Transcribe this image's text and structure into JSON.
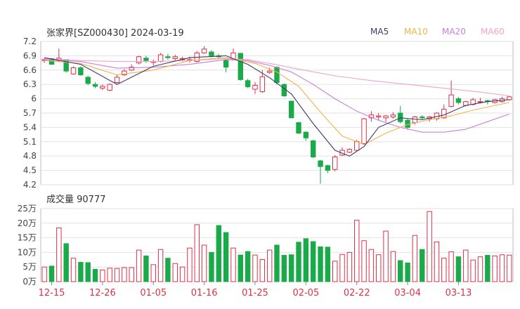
{
  "chart_data": [
    {
      "type": "candlestick",
      "title": "张家界[SZ000430] 2024-03-19",
      "legend": [
        {
          "name": "MA5",
          "color": "#3b3b6e"
        },
        {
          "name": "MA10",
          "color": "#f2b24a"
        },
        {
          "name": "MA20",
          "color": "#c77ee0"
        },
        {
          "name": "MA60",
          "color": "#f0a3c8"
        }
      ],
      "legend_placement": "top-right",
      "ylim": [
        4.2,
        7.2
      ],
      "yticks": [
        "7.2",
        "6.9",
        "6.6",
        "6.3",
        "6",
        "5.7",
        "5.4",
        "5.1",
        "4.8",
        "4.5",
        "4.2"
      ],
      "up_color": "#e0304a",
      "down_color": "#1aaa4a",
      "candles": [
        [
          6.8,
          6.85,
          6.75,
          6.82
        ],
        [
          6.84,
          6.85,
          6.72,
          6.72
        ],
        [
          6.8,
          7.05,
          6.78,
          6.85
        ],
        [
          6.82,
          6.82,
          6.55,
          6.58
        ],
        [
          6.52,
          6.68,
          6.5,
          6.65
        ],
        [
          6.65,
          6.68,
          6.48,
          6.5
        ],
        [
          6.45,
          6.48,
          6.28,
          6.32
        ],
        [
          6.3,
          6.35,
          6.22,
          6.26
        ],
        [
          6.22,
          6.3,
          6.18,
          6.26
        ],
        [
          6.18,
          6.32,
          6.16,
          6.3
        ],
        [
          6.34,
          6.5,
          6.32,
          6.45
        ],
        [
          6.5,
          6.62,
          6.48,
          6.58
        ],
        [
          6.6,
          6.72,
          6.58,
          6.66
        ],
        [
          6.75,
          6.9,
          6.72,
          6.88
        ],
        [
          6.85,
          6.9,
          6.75,
          6.8
        ],
        [
          6.76,
          6.82,
          6.7,
          6.78
        ],
        [
          6.78,
          6.96,
          6.76,
          6.92
        ],
        [
          6.88,
          6.94,
          6.82,
          6.86
        ],
        [
          6.84,
          6.92,
          6.8,
          6.88
        ],
        [
          6.82,
          6.88,
          6.78,
          6.84
        ],
        [
          6.8,
          6.88,
          6.76,
          6.82
        ],
        [
          6.78,
          7.0,
          6.76,
          6.96
        ],
        [
          6.96,
          7.1,
          6.94,
          7.04
        ],
        [
          6.98,
          7.02,
          6.86,
          6.9
        ],
        [
          6.9,
          6.94,
          6.85,
          6.88
        ],
        [
          6.8,
          6.82,
          6.55,
          6.66
        ],
        [
          6.82,
          7.05,
          6.8,
          6.96
        ],
        [
          6.95,
          6.96,
          6.38,
          6.4
        ],
        [
          6.38,
          6.42,
          6.22,
          6.25
        ],
        [
          6.2,
          6.35,
          6.1,
          6.28
        ],
        [
          6.15,
          6.6,
          6.12,
          6.46
        ],
        [
          6.55,
          6.65,
          6.52,
          6.58
        ],
        [
          6.66,
          6.68,
          6.3,
          6.34
        ],
        [
          6.3,
          6.32,
          6.04,
          6.06
        ],
        [
          5.95,
          5.96,
          5.6,
          5.6
        ],
        [
          5.5,
          5.52,
          5.26,
          5.28
        ],
        [
          5.3,
          5.32,
          5.12,
          5.18
        ],
        [
          5.12,
          5.14,
          4.76,
          4.78
        ],
        [
          4.7,
          4.72,
          4.22,
          4.58
        ],
        [
          4.6,
          4.62,
          4.44,
          4.5
        ],
        [
          4.52,
          4.82,
          4.48,
          4.78
        ],
        [
          4.82,
          4.98,
          4.8,
          4.92
        ],
        [
          4.88,
          4.96,
          4.86,
          4.94
        ],
        [
          4.92,
          5.14,
          4.9,
          5.1
        ],
        [
          5.06,
          5.6,
          5.04,
          5.58
        ],
        [
          5.6,
          5.74,
          5.52,
          5.66
        ],
        [
          5.62,
          5.7,
          5.54,
          5.64
        ],
        [
          5.6,
          5.66,
          5.52,
          5.64
        ],
        [
          5.62,
          5.72,
          5.58,
          5.66
        ],
        [
          5.7,
          5.85,
          5.48,
          5.52
        ],
        [
          5.55,
          5.58,
          5.35,
          5.4
        ],
        [
          5.5,
          5.64,
          5.46,
          5.62
        ],
        [
          5.62,
          5.66,
          5.56,
          5.6
        ],
        [
          5.58,
          5.64,
          5.52,
          5.62
        ],
        [
          5.58,
          5.72,
          5.54,
          5.7
        ],
        [
          5.6,
          5.88,
          5.58,
          5.78
        ],
        [
          5.84,
          6.38,
          5.82,
          6.08
        ],
        [
          6.0,
          6.04,
          5.88,
          5.92
        ],
        [
          5.86,
          5.96,
          5.84,
          5.94
        ],
        [
          5.88,
          6.02,
          5.86,
          5.98
        ],
        [
          5.94,
          6.02,
          5.9,
          5.94
        ],
        [
          5.96,
          5.98,
          5.88,
          5.94
        ],
        [
          5.92,
          6.0,
          5.9,
          5.98
        ],
        [
          5.94,
          6.04,
          5.92,
          6.0
        ],
        [
          5.98,
          6.06,
          5.96,
          6.04
        ]
      ],
      "ma5": [
        [
          0,
          6.86
        ],
        [
          5,
          6.72
        ],
        [
          10,
          6.3
        ],
        [
          15,
          6.68
        ],
        [
          20,
          6.86
        ],
        [
          25,
          6.9
        ],
        [
          28,
          6.72
        ],
        [
          31,
          6.44
        ],
        [
          34,
          6.1
        ],
        [
          37,
          5.48
        ],
        [
          40,
          4.92
        ],
        [
          42,
          4.8
        ],
        [
          44,
          5.0
        ],
        [
          46,
          5.4
        ],
        [
          49,
          5.6
        ],
        [
          52,
          5.56
        ],
        [
          55,
          5.66
        ],
        [
          58,
          5.86
        ],
        [
          61,
          5.94
        ],
        [
          64,
          5.98
        ]
      ],
      "ma10": [
        [
          0,
          6.8
        ],
        [
          5,
          6.74
        ],
        [
          10,
          6.5
        ],
        [
          15,
          6.6
        ],
        [
          20,
          6.8
        ],
        [
          25,
          6.86
        ],
        [
          29,
          6.74
        ],
        [
          32,
          6.56
        ],
        [
          35,
          6.26
        ],
        [
          38,
          5.72
        ],
        [
          41,
          5.22
        ],
        [
          44,
          5.04
        ],
        [
          47,
          5.28
        ],
        [
          50,
          5.46
        ],
        [
          53,
          5.56
        ],
        [
          56,
          5.64
        ],
        [
          59,
          5.76
        ],
        [
          62,
          5.86
        ],
        [
          64,
          5.92
        ]
      ],
      "ma20": [
        [
          0,
          6.82
        ],
        [
          5,
          6.78
        ],
        [
          10,
          6.64
        ],
        [
          15,
          6.66
        ],
        [
          20,
          6.72
        ],
        [
          25,
          6.82
        ],
        [
          28,
          6.8
        ],
        [
          31,
          6.7
        ],
        [
          34,
          6.56
        ],
        [
          37,
          6.3
        ],
        [
          40,
          6.0
        ],
        [
          43,
          5.74
        ],
        [
          46,
          5.55
        ],
        [
          49,
          5.4
        ],
        [
          52,
          5.3
        ],
        [
          55,
          5.3
        ],
        [
          58,
          5.36
        ],
        [
          61,
          5.52
        ],
        [
          64,
          5.68
        ]
      ],
      "ma60": [
        [
          0,
          6.84
        ],
        [
          5,
          6.8
        ],
        [
          10,
          6.78
        ],
        [
          15,
          6.78
        ],
        [
          20,
          6.8
        ],
        [
          25,
          6.84
        ],
        [
          28,
          6.82
        ],
        [
          31,
          6.74
        ],
        [
          35,
          6.62
        ],
        [
          40,
          6.48
        ],
        [
          45,
          6.38
        ],
        [
          50,
          6.3
        ],
        [
          55,
          6.22
        ],
        [
          60,
          6.14
        ],
        [
          64,
          6.06
        ]
      ]
    },
    {
      "type": "bar",
      "title": "成交量 90777",
      "ylim": [
        0,
        250000
      ],
      "yticks": [
        "25万",
        "20万",
        "15万",
        "10万",
        "5万",
        "0万"
      ],
      "xticks": [
        {
          "index": 1,
          "label": "12-15"
        },
        {
          "index": 8,
          "label": "12-26"
        },
        {
          "index": 15,
          "label": "01-05"
        },
        {
          "index": 22,
          "label": "01-16"
        },
        {
          "index": 29,
          "label": "01-25"
        },
        {
          "index": 36,
          "label": "02-05"
        },
        {
          "index": 43,
          "label": "02-22"
        },
        {
          "index": 50,
          "label": "03-04"
        },
        {
          "index": 57,
          "label": "03-13"
        }
      ],
      "values": [
        50000,
        53000,
        184000,
        130000,
        80000,
        66000,
        65000,
        42000,
        40000,
        46000,
        45000,
        48000,
        48000,
        108000,
        88000,
        58000,
        110000,
        80000,
        62000,
        50000,
        115000,
        195000,
        125000,
        100000,
        192000,
        168000,
        115000,
        91000,
        103000,
        91000,
        76000,
        108000,
        125000,
        90000,
        92000,
        135000,
        147000,
        137000,
        119000,
        118000,
        70000,
        93000,
        100000,
        210000,
        140000,
        110000,
        92000,
        173000,
        103000,
        72000,
        64000,
        158000,
        110000,
        240000,
        136000,
        80000,
        102000,
        85000,
        108000,
        74000,
        85000,
        90000,
        88000,
        92000,
        90777
      ]
    }
  ]
}
